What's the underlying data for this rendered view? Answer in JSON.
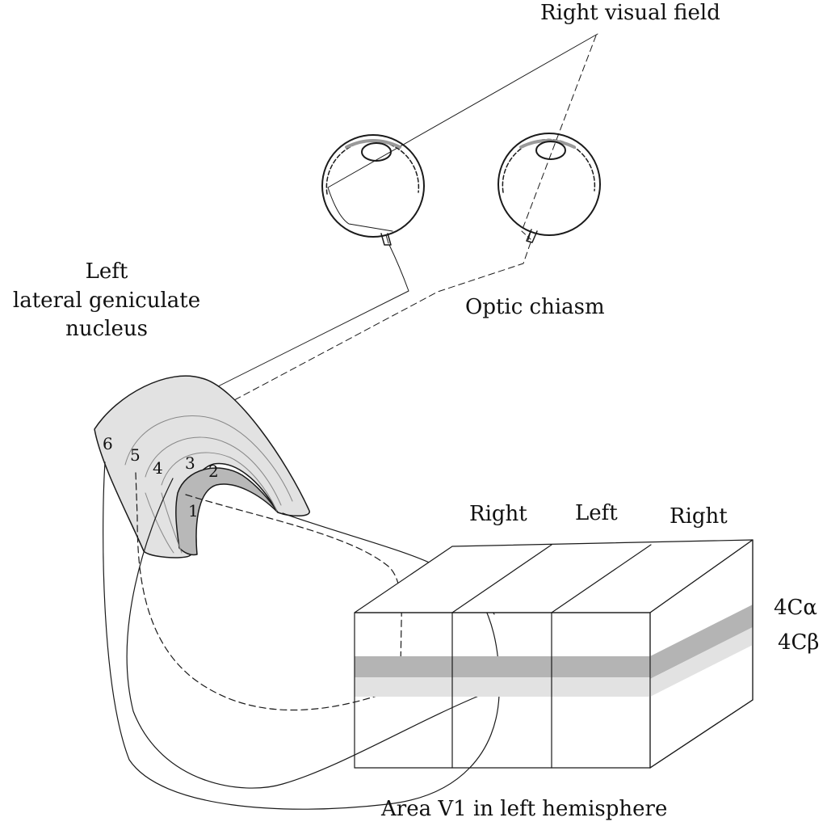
{
  "labels": {
    "right_visual_field": "Right visual field",
    "lgn_line1": "Left",
    "lgn_line2": "lateral geniculate",
    "lgn_line3": "nucleus",
    "optic_chiasm": "Optic chiasm",
    "column_right_1": "Right",
    "column_left": "Left",
    "column_right_2": "Right",
    "layer_4c_alpha": "4Cα",
    "layer_4c_beta": "4Cβ",
    "area_v1": "Area V1 in left hemisphere"
  },
  "lgn_layers": [
    "6",
    "5",
    "4",
    "3",
    "2",
    "1"
  ],
  "colors": {
    "lgn_fill": "#e2e2e2",
    "lgn_magno_fill": "#b8b8b8",
    "layer_4c_alpha": "#b4b4b4",
    "layer_4c_beta": "#e2e2e2",
    "stroke": "#1a1a1a"
  }
}
